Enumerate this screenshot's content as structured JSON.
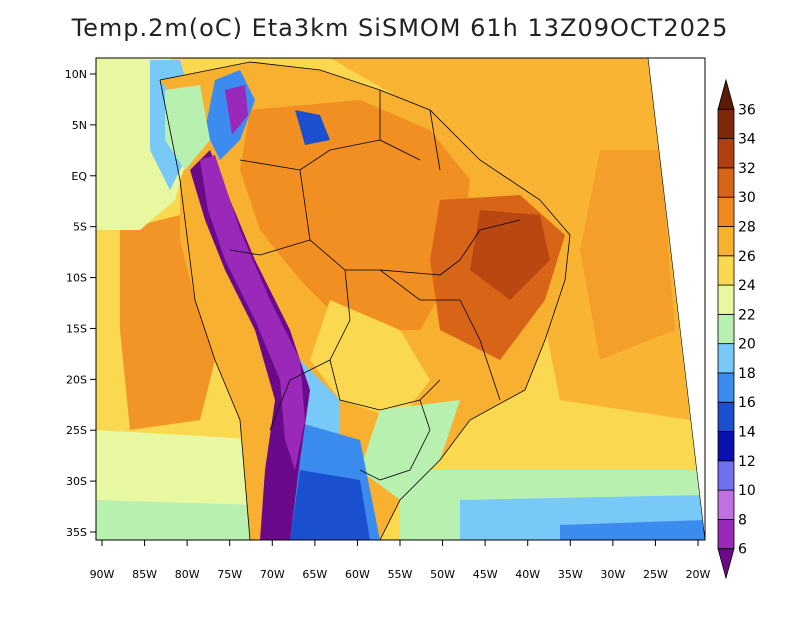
{
  "title": "Temp.2m(oC) Eta3km SiSMOM 61h 13Z09OCT2025",
  "lon_labels": [
    "90W",
    "85W",
    "80W",
    "75W",
    "70W",
    "65W",
    "60W",
    "55W",
    "50W",
    "45W",
    "40W",
    "35W",
    "30W",
    "25W",
    "20W"
  ],
  "lat_labels": [
    "10N",
    "5N",
    "EQ",
    "5S",
    "10S",
    "15S",
    "20S",
    "25S",
    "30S",
    "35S"
  ],
  "colorbar": {
    "levels": [
      "6",
      "8",
      "10",
      "12",
      "14",
      "16",
      "18",
      "20",
      "22",
      "24",
      "26",
      "28",
      "30",
      "32",
      "34",
      "36"
    ],
    "colors": [
      "#6a0a8a",
      "#9a28b8",
      "#c070e0",
      "#7070f0",
      "#0a10b0",
      "#1a50d0",
      "#3c8cf0",
      "#78c8f8",
      "#b8f0b0",
      "#e8f8a0",
      "#fad850",
      "#f8b030",
      "#f08a20",
      "#d86418",
      "#b04010",
      "#802808",
      "#5a1a04"
    ]
  },
  "temperature_zones": {
    "ocean_pacific_south": "24",
    "ocean_atlantic": "27",
    "amazon_interior": "30",
    "northeast_brazil": "33",
    "andes_highlands": "6",
    "patagonia_south": "14",
    "south_atlantic_coast": "20"
  }
}
